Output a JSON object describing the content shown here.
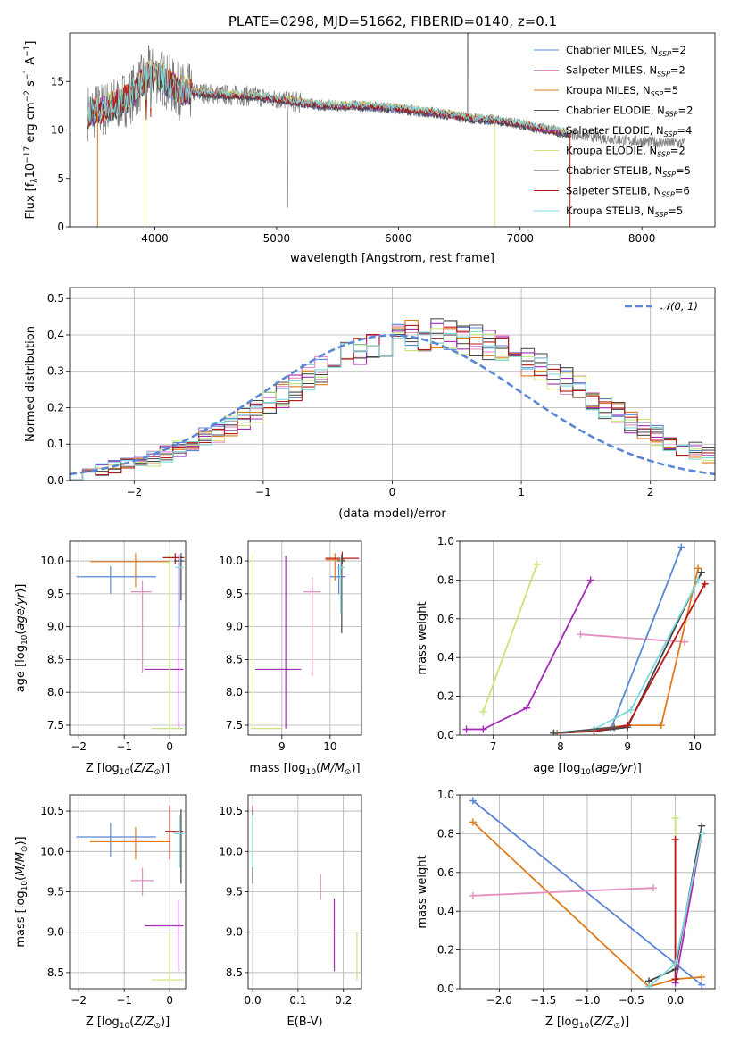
{
  "colors": {
    "Chabrier MILES": "#5b86d6",
    "Salpeter MILES": "#e58ec2",
    "Kroupa MILES": "#e07b1a",
    "Chabrier ELODIE": "#555555",
    "Salpeter ELODIE": "#a52bb8",
    "Kroupa ELODIE": "#c7e67a",
    "Chabrier STELIB": "#444444",
    "Salpeter STELIB": "#b81818",
    "Kroupa STELIB": "#7fd8dc",
    "normal_fit": "#5b86d6"
  },
  "chart_data": [
    {
      "id": "spectrum",
      "type": "line",
      "title": "PLATE=0298, MJD=51662, FIBERID=0140, z=0.1",
      "xlabel": "wavelength [Angstrom, rest frame]",
      "ylabel": "Flux [f_λ10^-17 erg cm^-2 s^-1 A^-1]",
      "xlim": [
        3300,
        8600
      ],
      "ylim": [
        0,
        20
      ],
      "xticks": [
        "4000",
        "5000",
        "6000",
        "7000",
        "8000"
      ],
      "yticks": [
        "0",
        "5",
        "10",
        "15"
      ],
      "grid": false,
      "legend_position": "top-right",
      "legend": [
        {
          "name": "Chabrier MILES",
          "nssp": "2"
        },
        {
          "name": "Salpeter MILES",
          "nssp": "2"
        },
        {
          "name": "Kroupa MILES",
          "nssp": "5"
        },
        {
          "name": "Chabrier ELODIE",
          "nssp": "2"
        },
        {
          "name": "Salpeter ELODIE",
          "nssp": "4"
        },
        {
          "name": "Kroupa ELODIE",
          "nssp": "2"
        },
        {
          "name": "Chabrier STELIB",
          "nssp": "5"
        },
        {
          "name": "Salpeter STELIB",
          "nssp": "6"
        },
        {
          "name": "Kroupa STELIB",
          "nssp": "5"
        }
      ],
      "data_wavelength_range": [
        3450,
        8350
      ],
      "model_envelope": [
        [
          3450,
          11.8
        ],
        [
          3600,
          12.2
        ],
        [
          3800,
          13.5
        ],
        [
          3950,
          15.8
        ],
        [
          4050,
          15.5
        ],
        [
          4200,
          14.0
        ],
        [
          4400,
          13.8
        ],
        [
          4600,
          13.6
        ],
        [
          4800,
          13.5
        ],
        [
          5000,
          13.2
        ],
        [
          5200,
          12.8
        ],
        [
          5400,
          12.5
        ],
        [
          5600,
          12.5
        ],
        [
          5800,
          12.4
        ],
        [
          6000,
          12.2
        ],
        [
          6200,
          11.9
        ],
        [
          6400,
          11.6
        ],
        [
          6600,
          11.2
        ],
        [
          6800,
          11.0
        ],
        [
          7000,
          10.6
        ],
        [
          7200,
          10.1
        ],
        [
          7400,
          9.6
        ]
      ],
      "data_envelope": [
        [
          7400,
          9.6
        ],
        [
          7600,
          9.3
        ],
        [
          7800,
          9.0
        ],
        [
          8000,
          8.8
        ],
        [
          8200,
          8.7
        ],
        [
          8350,
          8.6
        ]
      ]
    },
    {
      "id": "residuals",
      "type": "histogram",
      "xlabel": "(data-model)/error",
      "ylabel": "Normed distribution",
      "xlim": [
        -2.5,
        2.5
      ],
      "ylim": [
        0,
        0.53
      ],
      "xticks": [
        "−2",
        "−1",
        "0",
        "1",
        "2"
      ],
      "yticks": [
        "0.0",
        "0.1",
        "0.2",
        "0.3",
        "0.4",
        "0.5"
      ],
      "grid": true,
      "legend": [
        "𝒩(0, 1)"
      ],
      "legend_position": "top-right",
      "bin_width": 0.1,
      "base_bins": [
        0.02,
        0.024,
        0.03,
        0.036,
        0.043,
        0.052,
        0.062,
        0.074,
        0.087,
        0.101,
        0.117,
        0.134,
        0.152,
        0.172,
        0.193,
        0.214,
        0.236,
        0.258,
        0.28,
        0.302,
        0.323,
        0.342,
        0.36,
        0.375,
        0.387,
        0.396,
        0.4,
        0.402,
        0.4,
        0.396,
        0.39,
        0.382,
        0.372,
        0.36,
        0.346,
        0.33,
        0.312,
        0.292,
        0.271,
        0.249,
        0.227,
        0.205,
        0.183,
        0.162,
        0.143,
        0.125,
        0.108,
        0.093,
        0.08,
        0.068
      ]
    },
    {
      "id": "age-vs-z",
      "type": "errorbar",
      "xlabel": "Z [log10(Z/Z⊙)]",
      "ylabel": "age  [log10(age/yr)]",
      "xlim": [
        -2.2,
        0.35
      ],
      "ylim": [
        7.35,
        10.3
      ],
      "xticks": [
        "−2",
        "−1",
        "0"
      ],
      "yticks": [
        "7.5",
        "8.0",
        "8.5",
        "9.0",
        "9.5",
        "10.0"
      ],
      "grid": true,
      "points": [
        {
          "model": "Chabrier MILES",
          "x": -1.3,
          "y": 9.76,
          "xlo": -2.05,
          "xhi": -0.3,
          "ylo": 9.5,
          "yhi": 9.92
        },
        {
          "model": "Kroupa MILES",
          "x": -0.75,
          "y": 9.99,
          "xlo": -1.75,
          "xhi": 0.0,
          "ylo": 9.6,
          "yhi": 10.12
        },
        {
          "model": "Salpeter MILES",
          "x": -0.6,
          "y": 9.53,
          "xlo": -0.85,
          "xhi": -0.4,
          "ylo": 8.3,
          "yhi": 9.7
        },
        {
          "model": "Salpeter ELODIE",
          "x": 0.2,
          "y": 8.35,
          "xlo": -0.55,
          "xhi": 0.3,
          "ylo": 7.45,
          "yhi": 10.1
        },
        {
          "model": "Kroupa ELODIE",
          "x": 0.0,
          "y": 7.45,
          "xlo": -0.4,
          "xhi": 0.3,
          "ylo": 7.45,
          "yhi": 10.1
        },
        {
          "model": "Salpeter STELIB",
          "x": 0.12,
          "y": 10.05,
          "xlo": -0.15,
          "xhi": 0.32,
          "ylo": 9.95,
          "yhi": 10.12
        },
        {
          "model": "Chabrier STELIB",
          "x": 0.25,
          "y": 10.0,
          "xlo": 0.1,
          "xhi": 0.32,
          "ylo": 9.4,
          "yhi": 10.12
        },
        {
          "model": "Kroupa STELIB",
          "x": 0.22,
          "y": 9.9,
          "xlo": 0.12,
          "xhi": 0.3,
          "ylo": 9.0,
          "yhi": 10.08
        }
      ]
    },
    {
      "id": "age-vs-mass",
      "type": "errorbar",
      "xlabel": "mass [log10(M/M⊙)]",
      "ylabel": "",
      "xlim": [
        8.3,
        10.65
      ],
      "ylim": [
        7.35,
        10.3
      ],
      "xticks": [
        "9",
        "10"
      ],
      "yticks": [
        "7.5",
        "8.0",
        "8.5",
        "9.0",
        "9.5",
        "10.0"
      ],
      "grid": true,
      "points": [
        {
          "model": "Kroupa ELODIE",
          "x": 8.4,
          "y": 7.45,
          "xlo": 8.35,
          "xhi": 9.0,
          "ylo": 7.45,
          "yhi": 10.12
        },
        {
          "model": "Salpeter ELODIE",
          "x": 9.08,
          "y": 8.35,
          "xlo": 8.45,
          "xhi": 9.4,
          "ylo": 7.45,
          "yhi": 10.08
        },
        {
          "model": "Salpeter MILES",
          "x": 9.63,
          "y": 9.53,
          "xlo": 9.45,
          "xhi": 9.8,
          "ylo": 8.25,
          "yhi": 9.75
        },
        {
          "model": "Chabrier MILES",
          "x": 10.18,
          "y": 9.76,
          "xlo": 10.0,
          "xhi": 10.32,
          "ylo": 9.5,
          "yhi": 9.95
        },
        {
          "model": "Kroupa MILES",
          "x": 10.1,
          "y": 10.02,
          "xlo": 9.9,
          "xhi": 10.3,
          "ylo": 9.7,
          "yhi": 10.12
        },
        {
          "model": "Salpeter STELIB",
          "x": 10.25,
          "y": 10.04,
          "xlo": 9.9,
          "xhi": 10.6,
          "ylo": 9.95,
          "yhi": 10.14
        },
        {
          "model": "Chabrier STELIB",
          "x": 10.24,
          "y": 10.0,
          "xlo": 10.15,
          "xhi": 10.32,
          "ylo": 8.9,
          "yhi": 10.1
        },
        {
          "model": "Kroupa STELIB",
          "x": 10.22,
          "y": 9.9,
          "xlo": 10.15,
          "xhi": 10.3,
          "ylo": 9.2,
          "yhi": 10.05
        }
      ]
    },
    {
      "id": "weight-vs-age",
      "type": "line",
      "xlabel": "age  [log10(age/yr)]",
      "ylabel": "mass weight",
      "xlim": [
        6.5,
        10.3
      ],
      "ylim": [
        0,
        1.0
      ],
      "xticks": [
        "7",
        "8",
        "9",
        "10"
      ],
      "yticks": [
        "0.0",
        "0.2",
        "0.4",
        "0.6",
        "0.8",
        "1.0"
      ],
      "grid": true,
      "series": [
        {
          "model": "Kroupa ELODIE",
          "x": [
            6.85,
            7.65
          ],
          "y": [
            0.12,
            0.88
          ]
        },
        {
          "model": "Salpeter ELODIE",
          "x": [
            6.6,
            6.85,
            7.5,
            8.45
          ],
          "y": [
            0.03,
            0.03,
            0.14,
            0.8
          ]
        },
        {
          "model": "Salpeter MILES",
          "x": [
            8.3,
            9.85
          ],
          "y": [
            0.52,
            0.48
          ]
        },
        {
          "model": "Chabrier MILES",
          "x": [
            8.75,
            9.8
          ],
          "y": [
            0.03,
            0.97
          ]
        },
        {
          "model": "Kroupa MILES",
          "x": [
            7.95,
            8.5,
            9.0,
            9.5,
            10.05
          ],
          "y": [
            0.01,
            0.03,
            0.05,
            0.05,
            0.86
          ]
        },
        {
          "model": "Chabrier STELIB",
          "x": [
            7.9,
            8.5,
            9.0,
            10.1
          ],
          "y": [
            0.01,
            0.02,
            0.04,
            0.84
          ]
        },
        {
          "model": "Salpeter STELIB",
          "x": [
            7.9,
            8.5,
            9.0,
            10.15
          ],
          "y": [
            0.01,
            0.02,
            0.05,
            0.78
          ]
        },
        {
          "model": "Kroupa STELIB",
          "x": [
            7.9,
            8.5,
            9.05,
            10.05
          ],
          "y": [
            0.01,
            0.03,
            0.13,
            0.8
          ]
        },
        {
          "model": "Chabrier ELODIE",
          "x": [
            7.9,
            8.8
          ],
          "y": [
            0.01,
            0.04
          ]
        }
      ]
    },
    {
      "id": "mass-vs-z",
      "type": "errorbar",
      "xlabel": "Z [log10(Z/Z⊙)]",
      "ylabel": "mass [log10(M/M⊙)]",
      "xlim": [
        -2.2,
        0.35
      ],
      "ylim": [
        8.3,
        10.7
      ],
      "xticks": [
        "−2",
        "−1",
        "0"
      ],
      "yticks": [
        "8.5",
        "9.0",
        "9.5",
        "10.0",
        "10.5"
      ],
      "grid": true,
      "points": [
        {
          "model": "Chabrier MILES",
          "x": -1.3,
          "y": 10.18,
          "xlo": -2.05,
          "xhi": -0.3,
          "ylo": 9.93,
          "yhi": 10.35
        },
        {
          "model": "Kroupa MILES",
          "x": -0.75,
          "y": 10.12,
          "xlo": -1.75,
          "xhi": 0.0,
          "ylo": 9.9,
          "yhi": 10.3
        },
        {
          "model": "Salpeter MILES",
          "x": -0.6,
          "y": 9.64,
          "xlo": -0.85,
          "xhi": -0.35,
          "ylo": 9.45,
          "yhi": 9.8
        },
        {
          "model": "Salpeter ELODIE",
          "x": 0.2,
          "y": 9.08,
          "xlo": -0.55,
          "xhi": 0.3,
          "ylo": 8.52,
          "yhi": 9.4
        },
        {
          "model": "Kroupa ELODIE",
          "x": 0.0,
          "y": 8.41,
          "xlo": -0.4,
          "xhi": 0.3,
          "ylo": 8.41,
          "yhi": 9.0
        },
        {
          "model": "Salpeter STELIB",
          "x": 0.0,
          "y": 10.25,
          "xlo": -0.1,
          "xhi": 0.3,
          "ylo": 9.9,
          "yhi": 10.57
        },
        {
          "model": "Chabrier STELIB",
          "x": 0.25,
          "y": 10.24,
          "xlo": 0.05,
          "xhi": 0.32,
          "ylo": 9.6,
          "yhi": 10.52
        },
        {
          "model": "Kroupa STELIB",
          "x": 0.22,
          "y": 10.22,
          "xlo": 0.1,
          "xhi": 0.3,
          "ylo": 9.8,
          "yhi": 10.45
        }
      ]
    },
    {
      "id": "mass-vs-ebv",
      "type": "errorbar",
      "xlabel": "E(B-V)",
      "ylabel": "",
      "xlim": [
        -0.01,
        0.24
      ],
      "ylim": [
        8.3,
        10.7
      ],
      "xticks": [
        "0.0",
        "0.1",
        "0.2"
      ],
      "yticks": [
        "8.5",
        "9.0",
        "9.5",
        "10.0",
        "10.5"
      ],
      "grid": true,
      "points": [
        {
          "model": "Salpeter STELIB",
          "x": 0.0,
          "y": 10.25,
          "xlo": 0.0,
          "xhi": 0.0,
          "ylo": 9.9,
          "yhi": 10.57
        },
        {
          "model": "Chabrier STELIB",
          "x": 0.0,
          "y": 10.1,
          "xlo": 0.0,
          "xhi": 0.0,
          "ylo": 9.6,
          "yhi": 10.52
        },
        {
          "model": "Kroupa STELIB",
          "x": 0.0,
          "y": 10.2,
          "xlo": 0.0,
          "xhi": 0.0,
          "ylo": 9.8,
          "yhi": 10.45
        },
        {
          "model": "Salpeter MILES",
          "x": 0.15,
          "y": 9.64,
          "xlo": 0.15,
          "xhi": 0.15,
          "ylo": 9.4,
          "yhi": 9.72
        },
        {
          "model": "Salpeter ELODIE",
          "x": 0.18,
          "y": 9.08,
          "xlo": 0.18,
          "xhi": 0.18,
          "ylo": 8.52,
          "yhi": 9.42
        },
        {
          "model": "Kroupa ELODIE",
          "x": 0.23,
          "y": 8.7,
          "xlo": 0.23,
          "xhi": 0.23,
          "ylo": 8.4,
          "yhi": 9.0
        }
      ]
    },
    {
      "id": "weight-vs-z",
      "type": "line",
      "xlabel": "Z [log10(Z/Z⊙)]",
      "ylabel": "mass weight",
      "xlim": [
        -2.45,
        0.45
      ],
      "ylim": [
        0,
        1.0
      ],
      "xticks": [
        "−2.0",
        "−1.5",
        "−1.0",
        "−0.5",
        "0.0"
      ],
      "yticks": [
        "0.0",
        "0.2",
        "0.4",
        "0.6",
        "0.8",
        "1.0"
      ],
      "grid": true,
      "series": [
        {
          "model": "Chabrier MILES",
          "x": [
            -2.3,
            0.3
          ],
          "y": [
            0.97,
            0.02
          ]
        },
        {
          "model": "Kroupa MILES",
          "x": [
            -2.3,
            -0.3,
            0.0,
            0.3
          ],
          "y": [
            0.86,
            0.01,
            0.05,
            0.06
          ]
        },
        {
          "model": "Salpeter MILES",
          "x": [
            -2.3,
            -0.25
          ],
          "y": [
            0.48,
            0.52
          ]
        },
        {
          "model": "Kroupa ELODIE",
          "x": [
            0.0,
            0.0
          ],
          "y": [
            0.12,
            0.88
          ]
        },
        {
          "model": "Salpeter ELODIE",
          "x": [
            0.0,
            0.3
          ],
          "y": [
            0.03,
            0.8
          ]
        },
        {
          "model": "Salpeter STELIB",
          "x": [
            0.0,
            0.0
          ],
          "y": [
            0.05,
            0.77
          ]
        },
        {
          "model": "Chabrier STELIB",
          "x": [
            -0.3,
            0.0,
            0.3
          ],
          "y": [
            0.04,
            0.1,
            0.84
          ]
        },
        {
          "model": "Kroupa STELIB",
          "x": [
            -0.3,
            0.0,
            0.3
          ],
          "y": [
            0.01,
            0.13,
            0.8
          ]
        }
      ]
    }
  ]
}
